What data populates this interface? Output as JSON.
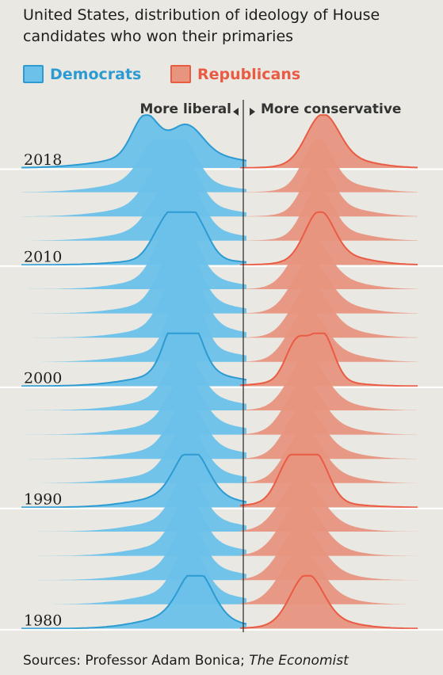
{
  "title": "United States, distribution of ideology of House candidates who won their primaries",
  "legend": {
    "democrats": {
      "label": "Democrats",
      "color": "#2d9bd2",
      "fill": "#6cc1ea"
    },
    "republicans": {
      "label": "Republicans",
      "color": "#ea5b44",
      "fill": "#e8957f"
    }
  },
  "axis": {
    "left_note": "More liberal",
    "right_note": "More conservative"
  },
  "source": {
    "prefix": "Sources: Professor Adam Bonica; ",
    "publication": "The Economist"
  },
  "chart_data": {
    "type": "ridgeline",
    "x_range": [
      -1,
      1
    ],
    "labeled_years": [
      2018,
      2010,
      2000,
      1990,
      1980
    ],
    "highlighted_years": [
      2018,
      2010,
      2000,
      1990,
      1980
    ],
    "years": [
      2018,
      2016,
      2014,
      2012,
      2010,
      2008,
      2006,
      2004,
      2002,
      2000,
      1998,
      1996,
      1994,
      1992,
      1990,
      1988,
      1986,
      1984,
      1982,
      1980
    ],
    "series": [
      {
        "name": "Democrats",
        "color": "#2d9bd2",
        "fill": "#6cc1ea"
      },
      {
        "name": "Republicans",
        "color": "#ea5b44",
        "fill": "#e8957f"
      }
    ],
    "distributions": {
      "Democrats": [
        [
          [
            -0.62,
            0.08,
            0.85
          ],
          [
            -0.36,
            0.1,
            0.6
          ],
          [
            -0.42,
            0.35,
            0.35
          ]
        ],
        [
          [
            -0.55,
            0.1,
            0.8
          ],
          [
            -0.38,
            0.09,
            0.8
          ],
          [
            -0.5,
            0.3,
            0.3
          ]
        ],
        [
          [
            -0.52,
            0.1,
            0.8
          ],
          [
            -0.36,
            0.09,
            0.8
          ],
          [
            -0.45,
            0.3,
            0.3
          ]
        ],
        [
          [
            -0.5,
            0.1,
            0.75
          ],
          [
            -0.34,
            0.09,
            0.8
          ],
          [
            -0.42,
            0.3,
            0.3
          ]
        ],
        [
          [
            -0.5,
            0.08,
            0.7
          ],
          [
            -0.38,
            0.07,
            0.9
          ],
          [
            -0.27,
            0.07,
            0.55
          ],
          [
            -0.38,
            0.3,
            0.15
          ]
        ],
        [
          [
            -0.48,
            0.09,
            0.8
          ],
          [
            -0.36,
            0.09,
            0.85
          ],
          [
            -0.4,
            0.28,
            0.3
          ]
        ],
        [
          [
            -0.46,
            0.09,
            0.8
          ],
          [
            -0.35,
            0.09,
            0.85
          ],
          [
            -0.38,
            0.28,
            0.3
          ]
        ],
        [
          [
            -0.44,
            0.09,
            0.8
          ],
          [
            -0.33,
            0.09,
            0.85
          ],
          [
            -0.36,
            0.28,
            0.3
          ]
        ],
        [
          [
            -0.4,
            0.08,
            0.9
          ],
          [
            -0.33,
            0.08,
            0.95
          ],
          [
            -0.35,
            0.3,
            0.3
          ]
        ],
        [
          [
            -0.42,
            0.08,
            1.0
          ],
          [
            -0.33,
            0.08,
            0.8
          ],
          [
            -0.35,
            0.3,
            0.3
          ]
        ],
        [
          [
            -0.38,
            0.1,
            1.0
          ],
          [
            -0.35,
            0.3,
            0.3
          ]
        ],
        [
          [
            -0.37,
            0.1,
            1.0
          ],
          [
            -0.35,
            0.3,
            0.3
          ]
        ],
        [
          [
            -0.36,
            0.1,
            1.0
          ],
          [
            -0.34,
            0.3,
            0.28
          ]
        ],
        [
          [
            -0.36,
            0.1,
            1.0
          ],
          [
            -0.34,
            0.3,
            0.28
          ]
        ],
        [
          [
            -0.33,
            0.1,
            1.0
          ],
          [
            -0.35,
            0.28,
            0.28
          ]
        ],
        [
          [
            -0.35,
            0.09,
            1.0
          ],
          [
            -0.34,
            0.28,
            0.3
          ]
        ],
        [
          [
            -0.35,
            0.09,
            1.0
          ],
          [
            -0.34,
            0.28,
            0.3
          ]
        ],
        [
          [
            -0.35,
            0.09,
            1.0
          ],
          [
            -0.34,
            0.28,
            0.3
          ]
        ],
        [
          [
            -0.34,
            0.09,
            1.0
          ],
          [
            -0.34,
            0.28,
            0.3
          ]
        ],
        [
          [
            -0.3,
            0.1,
            1.0
          ],
          [
            -0.36,
            0.25,
            0.3
          ]
        ]
      ],
      "Republicans": [
        [
          [
            0.5,
            0.1,
            1.0
          ],
          [
            0.6,
            0.2,
            0.2
          ]
        ],
        [
          [
            0.47,
            0.09,
            1.0
          ],
          [
            0.58,
            0.2,
            0.2
          ]
        ],
        [
          [
            0.47,
            0.09,
            1.0
          ],
          [
            0.58,
            0.2,
            0.2
          ]
        ],
        [
          [
            0.47,
            0.09,
            1.0
          ],
          [
            0.58,
            0.2,
            0.2
          ]
        ],
        [
          [
            0.48,
            0.09,
            1.0
          ],
          [
            0.58,
            0.2,
            0.2
          ]
        ],
        [
          [
            0.42,
            0.11,
            1.0
          ],
          [
            0.55,
            0.2,
            0.2
          ]
        ],
        [
          [
            0.42,
            0.11,
            1.0
          ],
          [
            0.55,
            0.2,
            0.2
          ]
        ],
        [
          [
            0.42,
            0.11,
            1.0
          ],
          [
            0.55,
            0.2,
            0.2
          ]
        ],
        [
          [
            0.4,
            0.11,
            1.0
          ],
          [
            0.55,
            0.2,
            0.2
          ]
        ],
        [
          [
            0.34,
            0.07,
            0.85
          ],
          [
            0.5,
            0.07,
            1.0
          ],
          [
            0.42,
            0.22,
            0.15
          ]
        ],
        [
          [
            0.4,
            0.11,
            1.0
          ],
          [
            0.5,
            0.2,
            0.2
          ]
        ],
        [
          [
            0.38,
            0.11,
            1.0
          ],
          [
            0.5,
            0.2,
            0.2
          ]
        ],
        [
          [
            0.38,
            0.11,
            1.0
          ],
          [
            0.5,
            0.2,
            0.2
          ]
        ],
        [
          [
            0.38,
            0.11,
            1.0
          ],
          [
            0.5,
            0.2,
            0.2
          ]
        ],
        [
          [
            0.3,
            0.08,
            0.9
          ],
          [
            0.46,
            0.08,
            0.95
          ],
          [
            0.38,
            0.25,
            0.15
          ]
        ],
        [
          [
            0.36,
            0.12,
            1.0
          ],
          [
            0.45,
            0.2,
            0.2
          ]
        ],
        [
          [
            0.36,
            0.12,
            1.0
          ],
          [
            0.45,
            0.2,
            0.2
          ]
        ],
        [
          [
            0.36,
            0.12,
            1.0
          ],
          [
            0.45,
            0.2,
            0.2
          ]
        ],
        [
          [
            0.36,
            0.12,
            1.0
          ],
          [
            0.45,
            0.2,
            0.2
          ]
        ],
        [
          [
            0.4,
            0.1,
            1.0
          ],
          [
            0.48,
            0.2,
            0.2
          ]
        ]
      ]
    }
  }
}
